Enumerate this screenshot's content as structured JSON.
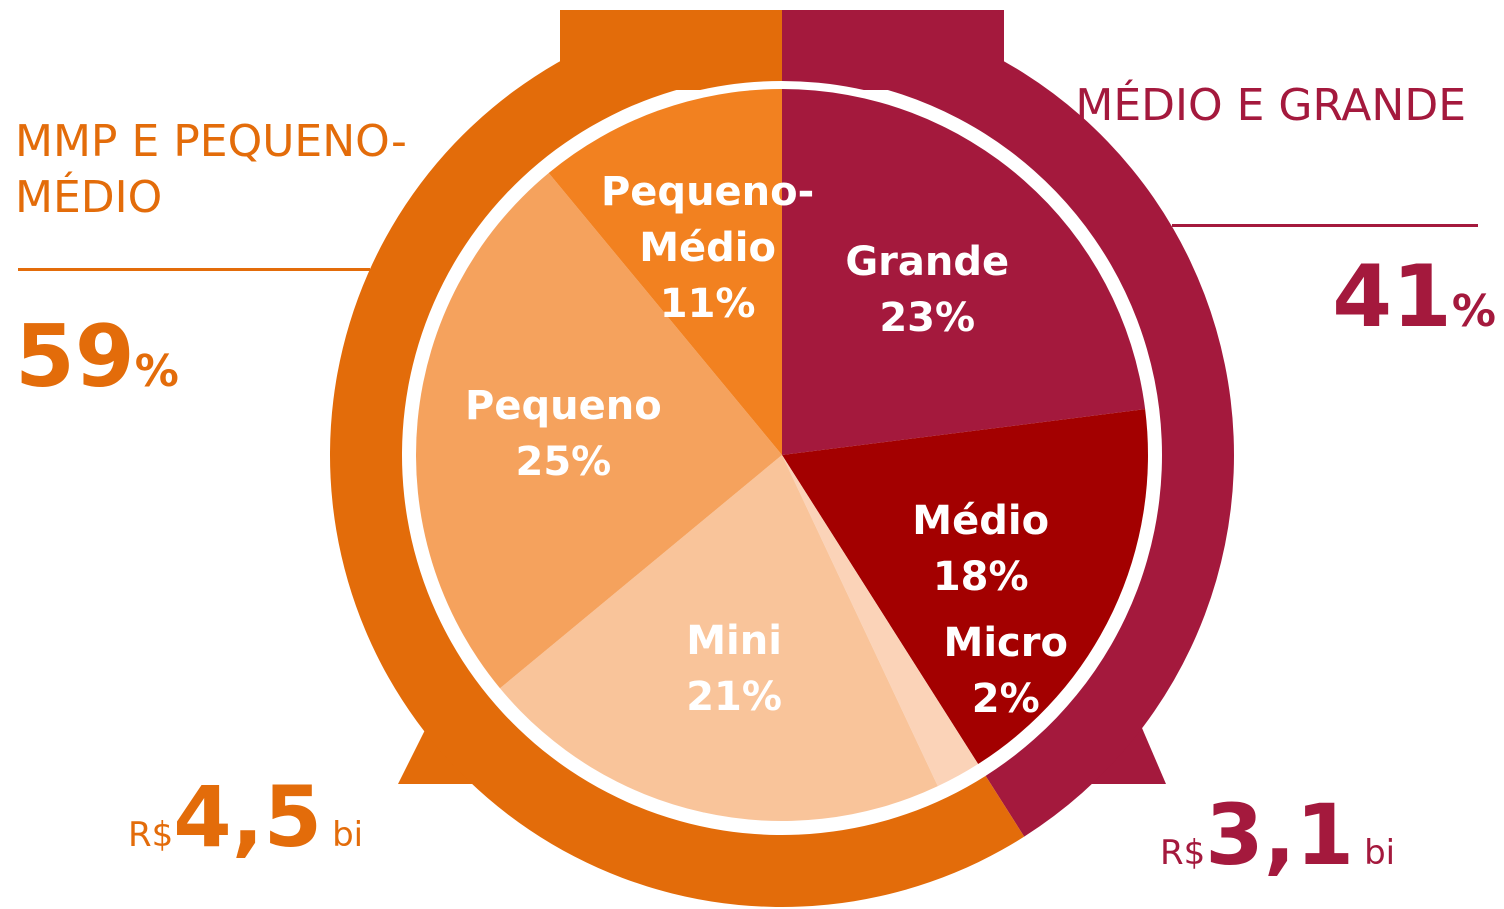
{
  "chart_data": {
    "type": "pie",
    "categories": [
      "Grande",
      "Médio",
      "Micro",
      "Mini",
      "Pequeno",
      "Pequeno-Médio"
    ],
    "values": [
      23,
      18,
      2,
      21,
      25,
      11
    ],
    "value_labels": [
      "23%",
      "18%",
      "2%",
      "21%",
      "25%",
      "11%"
    ],
    "colors": [
      "#a4193d",
      "#a30000",
      "#fbd3b8",
      "#f9c49a",
      "#f5a25d",
      "#f28120"
    ],
    "groups": [
      {
        "name": "MÉDIO E GRANDE",
        "value": 41,
        "unit": "%",
        "currency": "R$",
        "amount": 3.1,
        "amount_label": "3,1",
        "amount_unit": "bi",
        "color": "#a4193d"
      },
      {
        "name": "MMP E PEQUENO-MÉDIO",
        "value": 59,
        "unit": "%",
        "currency": "R$",
        "amount": 4.5,
        "amount_label": "4,5",
        "amount_unit": "bi",
        "color": "#e36c0a"
      }
    ]
  }
}
